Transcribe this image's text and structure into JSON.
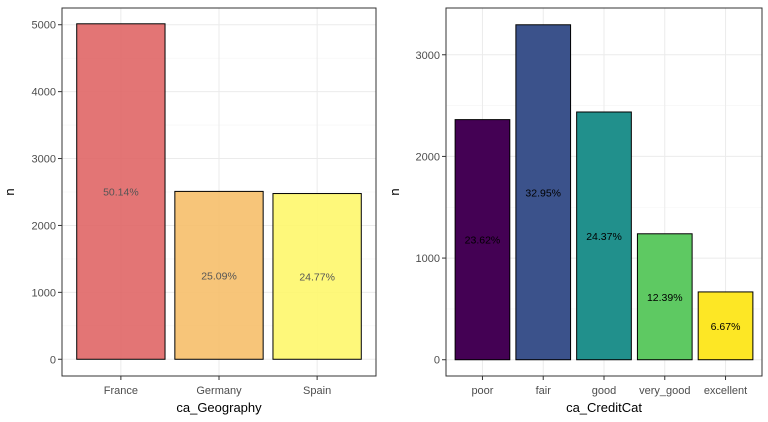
{
  "chart_data": [
    {
      "type": "bar",
      "categories": [
        "France",
        "Germany",
        "Spain"
      ],
      "values": [
        5014,
        2509,
        2477
      ],
      "labels": [
        "50.14%",
        "25.09%",
        "24.77%"
      ],
      "colors": [
        "#e06666",
        "#f6bf6a",
        "#fef76b"
      ],
      "bar_opacity": 0.9,
      "label_color": "#555555",
      "xlabel": "ca_Geography",
      "ylabel": "n",
      "yticks": [
        0,
        1000,
        2000,
        3000,
        4000,
        5000
      ],
      "ylim": [
        -250,
        5250
      ],
      "grid": true
    },
    {
      "type": "bar",
      "categories": [
        "poor",
        "fair",
        "good",
        "very_good",
        "excellent"
      ],
      "values": [
        2362,
        3295,
        2437,
        1239,
        667
      ],
      "labels": [
        "23.62%",
        "32.95%",
        "24.37%",
        "12.39%",
        "6.67%"
      ],
      "colors": [
        "#440154",
        "#3b528b",
        "#21908c",
        "#5ec962",
        "#fde725"
      ],
      "bar_opacity": 1,
      "label_color": "#000000",
      "xlabel": "ca_CreditCat",
      "ylabel": "n",
      "yticks": [
        0,
        1000,
        2000,
        3000
      ],
      "ylim": [
        -160,
        3460
      ],
      "grid": true
    }
  ]
}
